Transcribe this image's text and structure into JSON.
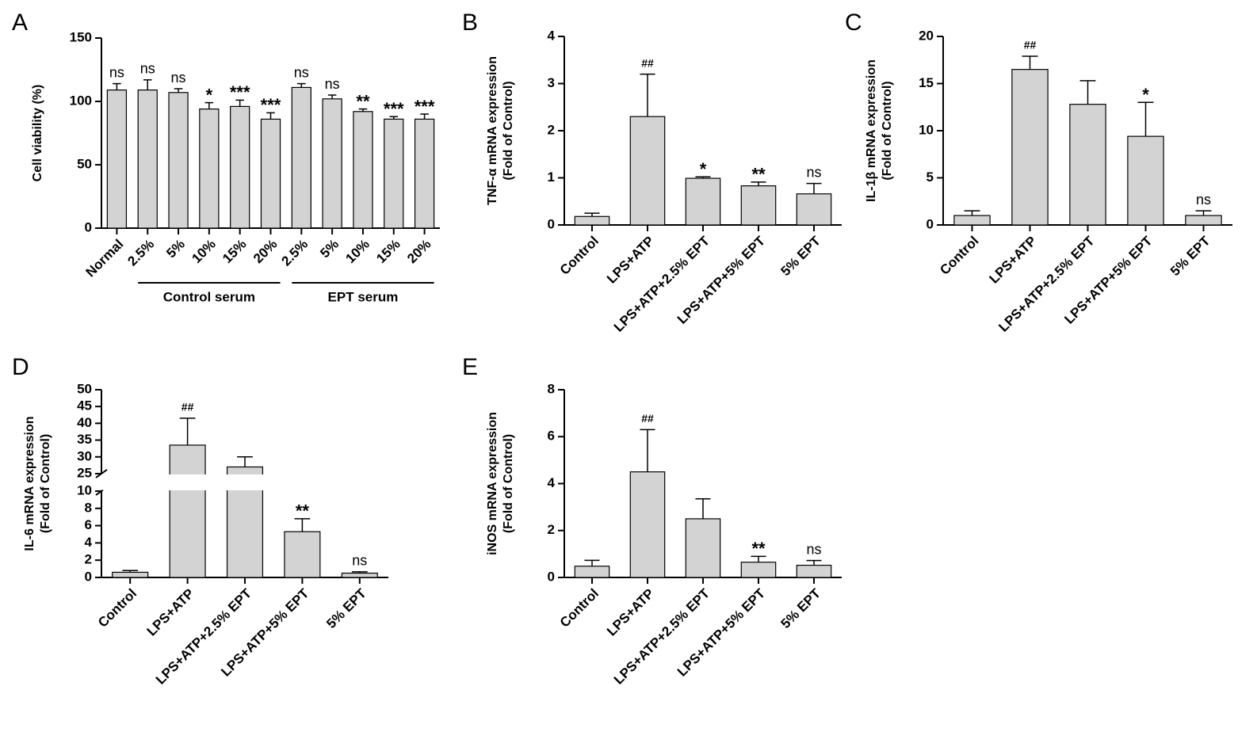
{
  "chart_data": [
    {
      "type": "bar",
      "panel": "A",
      "ylabel": [
        "Cell viability (%)"
      ],
      "categories": [
        "Normal",
        "2.5%",
        "5%",
        "10%",
        "15%",
        "20%",
        "2.5%",
        "5%",
        "10%",
        "15%",
        "20%"
      ],
      "values": [
        109,
        109,
        107,
        94,
        96,
        86,
        111,
        102,
        92,
        86,
        86
      ],
      "errors": [
        5,
        8,
        3,
        5,
        5,
        5,
        3,
        3,
        2,
        2,
        4
      ],
      "annotations": [
        "ns",
        "ns",
        "ns",
        "*",
        "***",
        "***",
        "ns",
        "ns",
        "**",
        "***",
        "***"
      ],
      "groups": [
        {
          "name": "Control serum",
          "span": [
            1,
            5
          ]
        },
        {
          "name": "EPT serum",
          "span": [
            6,
            10
          ]
        }
      ],
      "color": "#d3d3d3",
      "ylim": [
        0,
        150
      ],
      "yticks": [
        0,
        50,
        100,
        150
      ]
    },
    {
      "type": "bar",
      "panel": "B",
      "ylabel": [
        "TNF-α mRNA expression",
        "(Fold of Control)"
      ],
      "categories": [
        "Control",
        "LPS+ATP",
        "LPS+ATP+2.5% EPT",
        "LPS+ATP+5% EPT",
        "5% EPT"
      ],
      "values": [
        0.18,
        2.3,
        0.99,
        0.83,
        0.66
      ],
      "errors": [
        0.07,
        0.9,
        0.03,
        0.08,
        0.22
      ],
      "annotations": [
        null,
        "##",
        "*",
        "**",
        "ns"
      ],
      "color": "#d3d3d3",
      "ylim": [
        0,
        4
      ],
      "yticks": [
        0,
        1,
        2,
        3,
        4
      ]
    },
    {
      "type": "bar",
      "panel": "C",
      "ylabel": [
        "IL-1β mRNA expression",
        "(Fold of Control)"
      ],
      "categories": [
        "Control",
        "LPS+ATP",
        "LPS+ATP+2.5% EPT",
        "LPS+ATP+5% EPT",
        "5% EPT"
      ],
      "values": [
        1.0,
        16.5,
        12.8,
        9.4,
        1.0
      ],
      "errors": [
        0.5,
        1.4,
        2.5,
        3.6,
        0.5
      ],
      "annotations": [
        null,
        "##",
        null,
        "*",
        "ns"
      ],
      "color": "#d3d3d3",
      "ylim": [
        0,
        20
      ],
      "yticks": [
        0,
        5,
        10,
        15,
        20
      ]
    },
    {
      "type": "bar",
      "panel": "D",
      "ylabel": [
        "IL-6 mRNA expression",
        "(Fold of Control)"
      ],
      "categories": [
        "Control",
        "LPS+ATP",
        "LPS+ATP+2.5% EPT",
        "LPS+ATP+5% EPT",
        "5% EPT"
      ],
      "values": [
        0.6,
        33.5,
        27,
        5.3,
        0.5
      ],
      "errors": [
        0.2,
        8,
        3,
        1.5,
        0.15
      ],
      "annotations": [
        null,
        "##",
        null,
        "**",
        "ns"
      ],
      "color": "#d3d3d3",
      "ylim": [
        0,
        50
      ],
      "axis_break": [
        10,
        25
      ],
      "yticks": [
        0,
        2,
        4,
        6,
        8,
        10,
        25,
        30,
        35,
        40,
        45,
        50
      ]
    },
    {
      "type": "bar",
      "panel": "E",
      "ylabel": [
        "iNOS mRNA expression",
        "(Fold of Control)"
      ],
      "categories": [
        "Control",
        "LPS+ATP",
        "LPS+ATP+2.5% EPT",
        "LPS+ATP+5% EPT",
        "5% EPT"
      ],
      "values": [
        0.48,
        4.5,
        2.5,
        0.65,
        0.52
      ],
      "errors": [
        0.25,
        1.8,
        0.85,
        0.25,
        0.2
      ],
      "annotations": [
        null,
        "##",
        null,
        "**",
        "ns"
      ],
      "color": "#d3d3d3",
      "ylim": [
        0,
        8
      ],
      "yticks": [
        0,
        2,
        4,
        6,
        8
      ]
    }
  ]
}
